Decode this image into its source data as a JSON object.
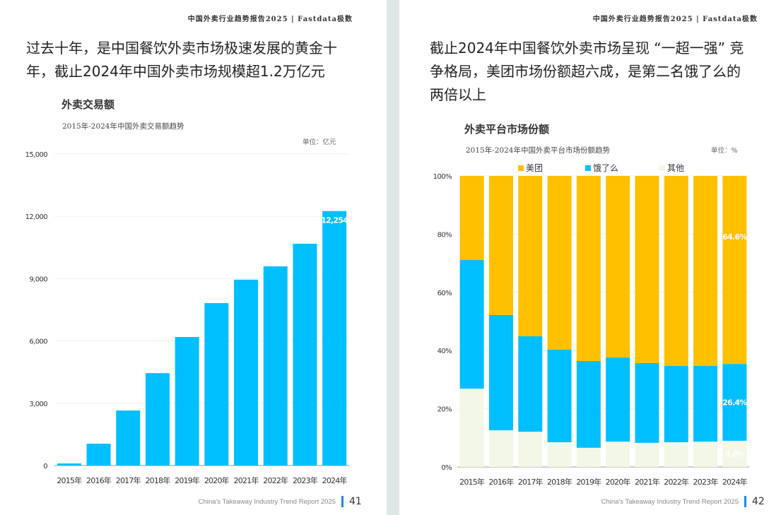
{
  "header": "中国外卖行业趋势报告2025 | Fastdata极数",
  "left": {
    "headline_line1": "过去十年，是中国餐饮外卖市场极速发展的黄金十",
    "headline_line2": "年，截止2024年中国外卖市场规模超1.2万亿元",
    "footer": "China's Takeaway Industry Trend Report 2025",
    "page_number": "41"
  },
  "right": {
    "headline_line1": "截止2024年中国餐饮外卖市场呈现 “一超一强” 竞",
    "headline_line2": "争格局，美团市场份额超六成，是第二名饿了么的",
    "headline_line3": "两倍以上",
    "footer": "China's Takeaway Industry Trend Report 2025",
    "page_number": "42"
  },
  "chart_data": [
    {
      "type": "bar",
      "title": "外卖交易额",
      "subtitle": "2015年-2024年中国外卖交易额趋势",
      "unit": "单位：亿元",
      "categories": [
        "2015年",
        "2016年",
        "2017年",
        "2018年",
        "2019年",
        "2020年",
        "2021年",
        "2022年",
        "2023年",
        "2024年"
      ],
      "values": [
        100,
        1050,
        2650,
        4450,
        6190,
        7820,
        8950,
        9590,
        10680,
        12254
      ],
      "data_labels": {
        "2024年": "12,254"
      },
      "ylim": [
        0,
        15000
      ],
      "yticks": [
        "0",
        "3,000",
        "6,000",
        "9,000",
        "12,000",
        "15,000"
      ],
      "grid": true,
      "color": "#00bfff"
    },
    {
      "type": "bar",
      "stacked": true,
      "title": "外卖平台市场份额",
      "subtitle": "2015年-2024年中国外卖平台市场份额趋势",
      "unit": "单位：%",
      "categories": [
        "2015年",
        "2016年",
        "2017年",
        "2018年",
        "2019年",
        "2020年",
        "2021年",
        "2022年",
        "2023年",
        "2024年"
      ],
      "series": [
        {
          "name": "其他",
          "color": "#f3f7e6",
          "values": [
            26.9,
            12.6,
            12.1,
            8.5,
            6.6,
            8.7,
            8.3,
            8.5,
            8.7,
            9.0
          ]
        },
        {
          "name": "饿了么",
          "color": "#00bfff",
          "values": [
            44.2,
            39.6,
            32.8,
            31.8,
            29.8,
            28.9,
            27.4,
            26.2,
            26.0,
            26.4
          ]
        },
        {
          "name": "美团",
          "color": "#ffc000",
          "values": [
            28.9,
            47.8,
            55.1,
            59.7,
            63.6,
            62.4,
            64.3,
            65.3,
            65.3,
            64.6
          ]
        }
      ],
      "data_labels": {
        "美团": "64.6%",
        "饿了么": "26.4%",
        "其他": "9.0%"
      },
      "ylim": [
        0,
        100
      ],
      "yticks": [
        "0%",
        "20%",
        "40%",
        "60%",
        "80%",
        "100%"
      ],
      "legend": "top",
      "grid": true
    }
  ]
}
